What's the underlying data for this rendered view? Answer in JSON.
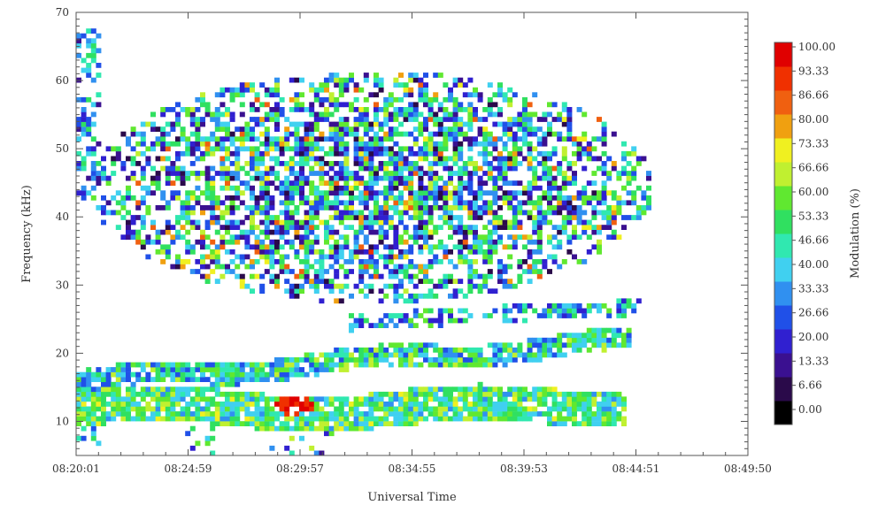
{
  "chart_data": {
    "type": "heatmap",
    "xlabel": "Universal Time",
    "ylabel": "Frequency (kHz)",
    "colorbar_label": "Modulation (%)",
    "x_ticks": [
      "08:20:01",
      "08:24:59",
      "08:29:57",
      "08:34:55",
      "08:39:53",
      "08:44:51",
      "08:49:50"
    ],
    "x_range_minutes": [
      0,
      29.82
    ],
    "ylim": [
      5,
      70
    ],
    "y_ticks": [
      10,
      20,
      30,
      40,
      50,
      60,
      70
    ],
    "color_scale": {
      "min": 0,
      "max": 100,
      "tick_labels": [
        "100.00",
        "93.33",
        "86.66",
        "80.00",
        "73.33",
        "66.66",
        "60.00",
        "53.33",
        "46.66",
        "40.00",
        "33.33",
        "26.66",
        "20.00",
        "13.33",
        "6.66",
        "0.00"
      ],
      "colors": [
        "#000000",
        "#2a0a4a",
        "#3a1090",
        "#3020d0",
        "#2050e8",
        "#3090f0",
        "#40d0f0",
        "#30e8b0",
        "#30e060",
        "#60e830",
        "#c0f030",
        "#f0f020",
        "#f0a010",
        "#f06010",
        "#f03000",
        "#e00000"
      ]
    },
    "regions": [
      {
        "label": "lower band",
        "t": [
          0,
          24
        ],
        "f_start": [
          9,
          15
        ],
        "f_end": [
          11,
          14
        ],
        "dominant_modulation": [
          40,
          70
        ],
        "peak": {
          "t": 9.5,
          "f": 12,
          "value": 100
        }
      },
      {
        "label": "rising band",
        "t": [
          0,
          24
        ],
        "f_start": [
          14,
          17
        ],
        "f_end": [
          19,
          22
        ],
        "dominant_modulation": [
          30,
          60
        ]
      },
      {
        "label": "upper diffuse region",
        "t": [
          0,
          26
        ],
        "f": [
          24,
          66
        ],
        "dominant_modulation": [
          10,
          70
        ]
      }
    ]
  }
}
